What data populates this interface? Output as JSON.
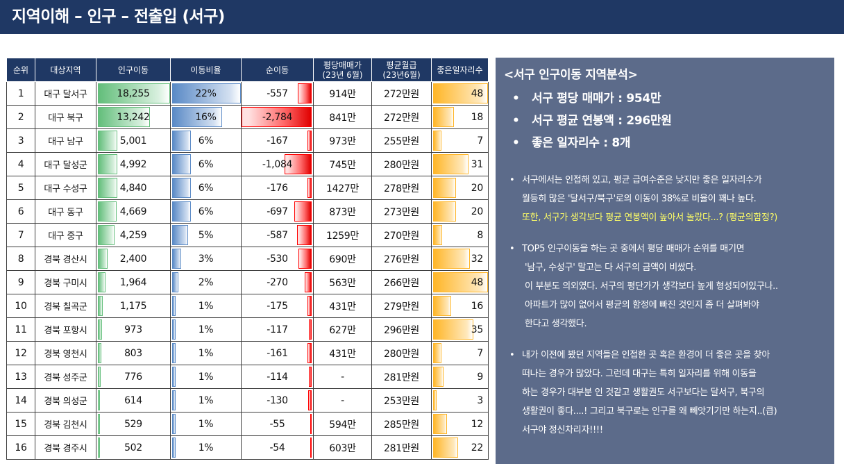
{
  "title": "지역이해 – 인구 – 전출입 (서구)",
  "table": {
    "headers": [
      "순위",
      "대상지역",
      "인구이동",
      "이동비율",
      "순이동",
      "평당매매가\n(23년 6월)",
      "평균월급\n(23년6월)",
      "좋은일자리수"
    ],
    "rows": [
      {
        "rank": "1",
        "region": "대구 달서구",
        "move": "18,255",
        "ratio": "22%",
        "net": "-557",
        "price": "914만",
        "wage": "272만원",
        "jobs": "48",
        "move_v": 18255,
        "ratio_v": 22,
        "net_v": -557,
        "jobs_v": 48
      },
      {
        "rank": "2",
        "region": "대구 북구",
        "move": "13,242",
        "ratio": "16%",
        "net": "-2,784",
        "price": "841만",
        "wage": "272만원",
        "jobs": "18",
        "move_v": 13242,
        "ratio_v": 16,
        "net_v": -2784,
        "jobs_v": 18
      },
      {
        "rank": "3",
        "region": "대구 남구",
        "move": "5,001",
        "ratio": "6%",
        "net": "-167",
        "price": "973만",
        "wage": "255만원",
        "jobs": "7",
        "move_v": 5001,
        "ratio_v": 6,
        "net_v": -167,
        "jobs_v": 7
      },
      {
        "rank": "4",
        "region": "대구 달성군",
        "move": "4,992",
        "ratio": "6%",
        "net": "-1,084",
        "price": "745만",
        "wage": "280만원",
        "jobs": "31",
        "move_v": 4992,
        "ratio_v": 6,
        "net_v": -1084,
        "jobs_v": 31
      },
      {
        "rank": "5",
        "region": "대구 수성구",
        "move": "4,840",
        "ratio": "6%",
        "net": "-176",
        "price": "1427만",
        "wage": "278만원",
        "jobs": "20",
        "move_v": 4840,
        "ratio_v": 6,
        "net_v": -176,
        "jobs_v": 20
      },
      {
        "rank": "6",
        "region": "대구 동구",
        "move": "4,669",
        "ratio": "6%",
        "net": "-697",
        "price": "873만",
        "wage": "273만원",
        "jobs": "20",
        "move_v": 4669,
        "ratio_v": 6,
        "net_v": -697,
        "jobs_v": 20
      },
      {
        "rank": "7",
        "region": "대구 중구",
        "move": "4,259",
        "ratio": "5%",
        "net": "-587",
        "price": "1259만",
        "wage": "270만원",
        "jobs": "8",
        "move_v": 4259,
        "ratio_v": 5,
        "net_v": -587,
        "jobs_v": 8
      },
      {
        "rank": "8",
        "region": "경북 경산시",
        "move": "2,400",
        "ratio": "3%",
        "net": "-530",
        "price": "690만",
        "wage": "276만원",
        "jobs": "32",
        "move_v": 2400,
        "ratio_v": 3,
        "net_v": -530,
        "jobs_v": 32
      },
      {
        "rank": "9",
        "region": "경북 구미시",
        "move": "1,964",
        "ratio": "2%",
        "net": "-270",
        "price": "563만",
        "wage": "266만원",
        "jobs": "48",
        "move_v": 1964,
        "ratio_v": 2,
        "net_v": -270,
        "jobs_v": 48
      },
      {
        "rank": "10",
        "region": "경북 칠곡군",
        "move": "1,175",
        "ratio": "1%",
        "net": "-175",
        "price": "431만",
        "wage": "279만원",
        "jobs": "16",
        "move_v": 1175,
        "ratio_v": 1,
        "net_v": -175,
        "jobs_v": 16
      },
      {
        "rank": "11",
        "region": "경북 포항시",
        "move": "973",
        "ratio": "1%",
        "net": "-117",
        "price": "627만",
        "wage": "296만원",
        "jobs": "35",
        "move_v": 973,
        "ratio_v": 1,
        "net_v": -117,
        "jobs_v": 35
      },
      {
        "rank": "12",
        "region": "경북 영천시",
        "move": "803",
        "ratio": "1%",
        "net": "-161",
        "price": "431만",
        "wage": "280만원",
        "jobs": "7",
        "move_v": 803,
        "ratio_v": 1,
        "net_v": -161,
        "jobs_v": 7
      },
      {
        "rank": "13",
        "region": "경북 성주군",
        "move": "776",
        "ratio": "1%",
        "net": "-114",
        "price": "-",
        "wage": "281만원",
        "jobs": "9",
        "move_v": 776,
        "ratio_v": 1,
        "net_v": -114,
        "jobs_v": 9
      },
      {
        "rank": "14",
        "region": "경북 의성군",
        "move": "614",
        "ratio": "1%",
        "net": "-130",
        "price": "-",
        "wage": "253만원",
        "jobs": "3",
        "move_v": 614,
        "ratio_v": 1,
        "net_v": -130,
        "jobs_v": 3
      },
      {
        "rank": "15",
        "region": "경북 김천시",
        "move": "529",
        "ratio": "1%",
        "net": "-55",
        "price": "594만",
        "wage": "285만원",
        "jobs": "12",
        "move_v": 529,
        "ratio_v": 1,
        "net_v": -55,
        "jobs_v": 12
      },
      {
        "rank": "16",
        "region": "경북 경주시",
        "move": "502",
        "ratio": "1%",
        "net": "-54",
        "price": "603만",
        "wage": "281만원",
        "jobs": "22",
        "move_v": 502,
        "ratio_v": 1,
        "net_v": -54,
        "jobs_v": 22
      }
    ],
    "colors": {
      "header": "#1f3864",
      "move_bar": "#63be7b",
      "ratio_bar": "#5a8ac6",
      "net_bar": "#ff0000",
      "jobs_bar": "#ffb628"
    }
  },
  "panel": {
    "title": "<서구 인구이동 지역분석>",
    "kpis": [
      {
        "bullet": "•",
        "text": "서구 평당 매매가 : 954만"
      },
      {
        "bullet": "•",
        "text": "서구 평균 연봉액 : 296만원"
      },
      {
        "bullet": "•",
        "text": "좋은 일자리수 : 8개"
      }
    ],
    "notes": [
      {
        "bullet": "•",
        "lines": [
          "서구에서는 인접해 있고, 평균 급여수준은 낮지만 좋은 일자리수가",
          "월등히 많은 '달서구/북구'로의 이동이 38%로 비율이 꽤나 높다.",
          "또한, 서구가 생각보다 평균 연봉액이 높아서 놀랐다...? (평균의함정?)"
        ]
      },
      {
        "bullet": "•",
        "lines": [
          "TOP5 인구이동을 하는 곳 중에서 평당 매매가 순위를 매기면",
          "'남구, 수성구' 말고는 다 서구의 금액이 비쌌다.",
          "이 부분도 의외였다. 서구의 평단가가 생각보다 높게 형성되어있구나..",
          "아파트가 많이 없어서 평균의 함정에 빠진 것인지 좀 더 살펴봐야",
          "한다고 생각했다."
        ]
      },
      {
        "bullet": "•",
        "lines": [
          "내가 이전에 봤던 지역들은 인접한 곳 혹은 환경이 더 좋은 곳을 찾아",
          "떠나는 경우가 많았다. 그런데 대구는 특히 일자리를 위해 이동을",
          "하는 경우가 대부분 인 것같고 생활권도 서구보다는 달서구, 북구의",
          "생활권이 좋다....! 그리고 북구로는 인구를 왜 빼앗기기만 하는지..(큽)",
          "서구야 정신차리자!!!!"
        ]
      }
    ]
  }
}
